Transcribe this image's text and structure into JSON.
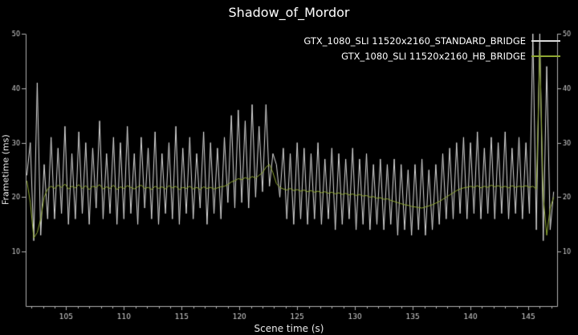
{
  "title": "Shadow_of_Mordor",
  "xlabel": "Scene time (s)",
  "ylabel": "Frametime (ms)",
  "colors": {
    "background": "#000000",
    "text": "#ffffff",
    "axis": "#b0b0b0",
    "tick_label": "#d6d6d6",
    "series_standard_bridge": "#dcdcdc",
    "series_hb_bridge": "#8fa832"
  },
  "legend": [
    {
      "label": "GTX_1080_SLI 11520x2160_STANDARD_BRIDGE",
      "color": "#dcdcdc"
    },
    {
      "label": "GTX_1080_SLI 11520x2160_HB_BRIDGE",
      "color": "#8fa832"
    }
  ],
  "chart_data": {
    "type": "line",
    "title": "Shadow_of_Mordor",
    "xlabel": "Scene time (s)",
    "ylabel": "Frametime (ms)",
    "xlim": [
      101.5,
      147.5
    ],
    "ylim": [
      0,
      50
    ],
    "xticks": [
      105,
      110,
      115,
      120,
      125,
      130,
      135,
      140,
      145
    ],
    "xminor_step": 1,
    "yticks": [
      10,
      20,
      30,
      40,
      50
    ],
    "grid": false,
    "legend_position": "top-right",
    "x_start": 101.6,
    "x_step": 0.3,
    "series": [
      {
        "name": "GTX_1080_SLI 11520x2160_STANDARD_BRIDGE",
        "color": "#dcdcdc",
        "values": [
          24,
          30,
          12,
          41,
          13,
          26,
          16,
          31,
          16,
          29,
          17,
          33,
          15,
          28,
          16,
          32,
          17,
          30,
          15,
          29,
          18,
          34,
          16,
          28,
          17,
          31,
          15,
          30,
          16,
          33,
          17,
          28,
          15,
          31,
          18,
          29,
          16,
          32,
          15,
          28,
          17,
          30,
          16,
          33,
          15,
          29,
          17,
          31,
          16,
          28,
          18,
          32,
          15,
          30,
          17,
          29,
          16,
          31,
          19,
          35,
          18,
          36,
          19,
          34,
          18,
          37,
          20,
          33,
          21,
          37,
          22,
          28,
          26,
          20,
          29,
          16,
          28,
          15,
          30,
          16,
          29,
          15,
          28,
          16,
          30,
          15,
          27,
          16,
          29,
          14,
          28,
          15,
          27,
          16,
          29,
          14,
          27,
          15,
          28,
          14,
          26,
          15,
          27,
          14,
          26,
          15,
          27,
          13,
          26,
          14,
          25,
          13,
          26,
          14,
          27,
          13,
          25,
          14,
          26,
          15,
          28,
          16,
          29,
          16,
          30,
          17,
          31,
          16,
          30,
          17,
          32,
          16,
          29,
          17,
          31,
          16,
          30,
          17,
          32,
          16,
          29,
          17,
          31,
          16,
          30,
          17,
          50,
          14,
          50,
          12,
          44,
          14,
          21
        ]
      },
      {
        "name": "GTX_1080_SLI 11520x2160_HB_BRIDGE",
        "color": "#8fa832",
        "values": [
          23,
          19,
          12.5,
          13.5,
          16,
          20,
          21.5,
          22,
          21.6,
          22.2,
          21.8,
          22.4,
          21.5,
          22,
          21.7,
          22.3,
          21.6,
          22.1,
          21.4,
          22,
          21.8,
          22.3,
          21.5,
          21.9,
          21.6,
          22.2,
          21.4,
          21.9,
          21.6,
          22.1,
          21.8,
          21.5,
          21.9,
          22.2,
          21.6,
          21.8,
          21.4,
          22,
          21.6,
          21.9,
          21.5,
          22.1,
          21.7,
          22,
          21.4,
          21.8,
          21.6,
          22,
          21.5,
          21.8,
          21.4,
          21.9,
          21.6,
          21.8,
          21.5,
          21.7,
          21.9,
          22,
          22.3,
          22.8,
          23,
          23.4,
          23.2,
          23.6,
          23.3,
          23.8,
          23.5,
          24,
          24.5,
          25.5,
          26,
          24.5,
          22.5,
          21.8,
          21.5,
          21.3,
          21.6,
          21.2,
          21.4,
          21.1,
          21.3,
          21,
          21.2,
          20.9,
          21.1,
          20.8,
          21,
          20.7,
          20.9,
          20.6,
          20.8,
          20.5,
          20.7,
          20.4,
          20.6,
          20.3,
          20.5,
          20.2,
          20.3,
          20,
          20.1,
          19.8,
          19.9,
          19.6,
          19.7,
          19.4,
          19.2,
          19,
          18.8,
          18.6,
          18.5,
          18.3,
          18.2,
          18.1,
          18,
          18.2,
          18.4,
          18.6,
          18.9,
          19.2,
          19.6,
          20,
          20.4,
          20.8,
          21.2,
          21.5,
          21.7,
          21.8,
          22,
          21.8,
          22.1,
          21.7,
          22,
          21.8,
          22.2,
          21.9,
          22.1,
          21.8,
          22,
          21.7,
          22.1,
          21.8,
          22,
          21.9,
          22.1,
          21.8,
          22,
          21.5,
          47,
          20,
          13,
          18,
          20
        ]
      }
    ]
  }
}
